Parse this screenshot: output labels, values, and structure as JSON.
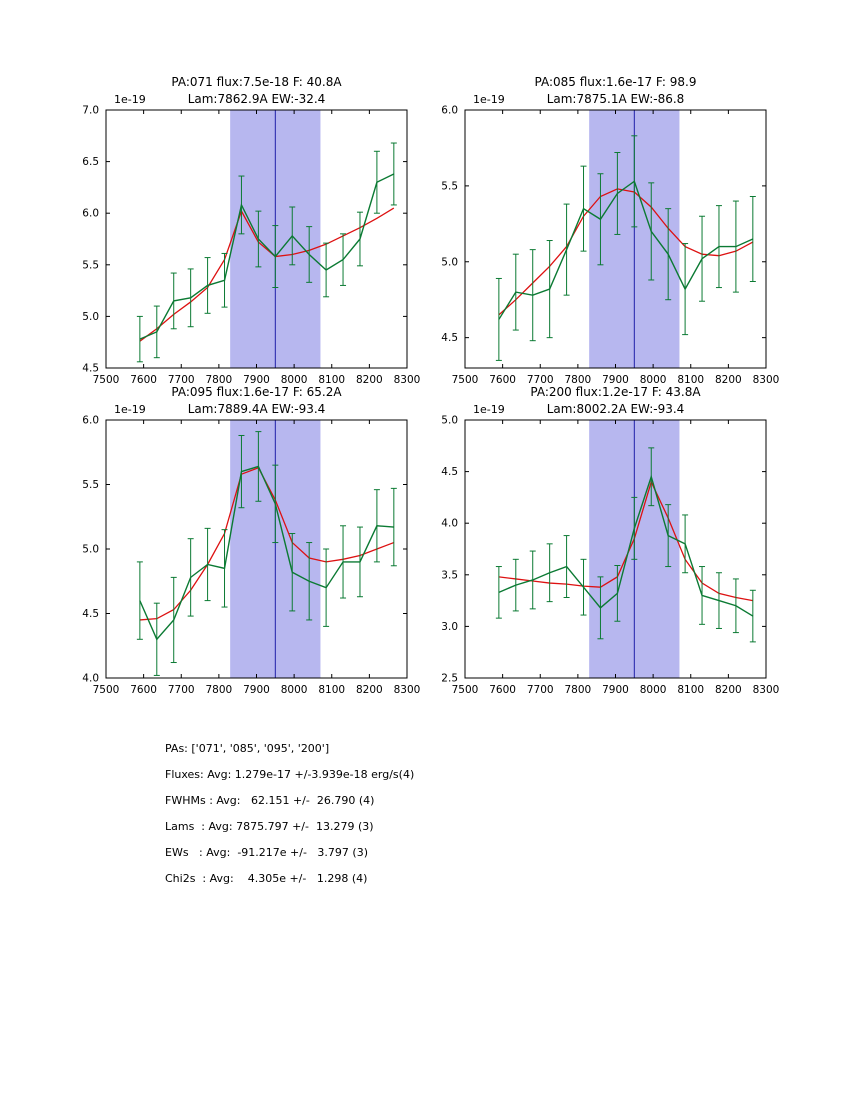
{
  "figure": {
    "background": "#ffffff"
  },
  "colors": {
    "data": "#0b7a33",
    "fit": "#dd1111",
    "vline": "#2020a8",
    "shade": "#b7b7ef",
    "frame": "#000000"
  },
  "chart_data": [
    {
      "type": "line",
      "title1": "PA:071 flux:7.5e-18 F: 40.8A",
      "title2": "Lam:7862.9A EW:-32.4",
      "offset": "1e-19",
      "xlim": [
        7500,
        8300
      ],
      "ylim": [
        4.5,
        7.0
      ],
      "xticks": [
        7500,
        7600,
        7700,
        7800,
        7900,
        8000,
        8100,
        8200,
        8300
      ],
      "yticks": [
        4.5,
        5.0,
        5.5,
        6.0,
        6.5,
        7.0
      ],
      "shade": [
        7830,
        8070
      ],
      "vline": 7950,
      "x": [
        7590,
        7635,
        7680,
        7725,
        7770,
        7815,
        7860,
        7905,
        7950,
        7995,
        8040,
        8085,
        8130,
        8175,
        8220,
        8265
      ],
      "series": [
        {
          "name": "data",
          "values": [
            4.78,
            4.85,
            5.15,
            5.18,
            5.3,
            5.35,
            6.08,
            5.75,
            5.58,
            5.78,
            5.6,
            5.45,
            5.55,
            5.75,
            6.3,
            6.38
          ],
          "err": [
            0.22,
            0.25,
            0.27,
            0.28,
            0.27,
            0.26,
            0.28,
            0.27,
            0.3,
            0.28,
            0.27,
            0.26,
            0.25,
            0.26,
            0.3,
            0.3
          ]
        },
        {
          "name": "fit",
          "values": [
            4.76,
            4.88,
            5.02,
            5.14,
            5.28,
            5.55,
            6.02,
            5.72,
            5.58,
            5.6,
            5.64,
            5.7,
            5.78,
            5.86,
            5.95,
            6.05
          ]
        }
      ]
    },
    {
      "type": "line",
      "title1": "PA:085 flux:1.6e-17 F: 98.9",
      "title2": "Lam:7875.1A EW:-86.8",
      "offset": "1e-19",
      "xlim": [
        7500,
        8300
      ],
      "ylim": [
        4.3,
        6.0
      ],
      "xticks": [
        7500,
        7600,
        7700,
        7800,
        7900,
        8000,
        8100,
        8200,
        8300
      ],
      "yticks": [
        4.5,
        5.0,
        5.5,
        6.0
      ],
      "shade": [
        7830,
        8070
      ],
      "vline": 7950,
      "x": [
        7590,
        7635,
        7680,
        7725,
        7770,
        7815,
        7860,
        7905,
        7950,
        7995,
        8040,
        8085,
        8130,
        8175,
        8220,
        8265
      ],
      "series": [
        {
          "name": "data",
          "values": [
            4.62,
            4.8,
            4.78,
            4.82,
            5.08,
            5.35,
            5.28,
            5.45,
            5.53,
            5.2,
            5.05,
            4.82,
            5.02,
            5.1,
            5.1,
            5.15
          ],
          "err": [
            0.27,
            0.25,
            0.3,
            0.32,
            0.3,
            0.28,
            0.3,
            0.27,
            0.3,
            0.32,
            0.3,
            0.3,
            0.28,
            0.27,
            0.3,
            0.28
          ]
        },
        {
          "name": "fit",
          "values": [
            4.65,
            4.75,
            4.86,
            4.97,
            5.1,
            5.3,
            5.43,
            5.48,
            5.46,
            5.36,
            5.22,
            5.1,
            5.05,
            5.04,
            5.07,
            5.13
          ]
        }
      ]
    },
    {
      "type": "line",
      "title1": "PA:095 flux:1.6e-17 F: 65.2A",
      "title2": "Lam:7889.4A EW:-93.4",
      "offset": "1e-19",
      "xlim": [
        7500,
        8300
      ],
      "ylim": [
        4.0,
        6.0
      ],
      "xticks": [
        7500,
        7600,
        7700,
        7800,
        7900,
        8000,
        8100,
        8200,
        8300
      ],
      "yticks": [
        4.0,
        4.5,
        5.0,
        5.5,
        6.0
      ],
      "shade": [
        7830,
        8070
      ],
      "vline": 7950,
      "x": [
        7590,
        7635,
        7680,
        7725,
        7770,
        7815,
        7860,
        7905,
        7950,
        7995,
        8040,
        8085,
        8130,
        8175,
        8220,
        8265
      ],
      "series": [
        {
          "name": "data",
          "values": [
            4.6,
            4.3,
            4.45,
            4.78,
            4.88,
            4.85,
            5.6,
            5.64,
            5.35,
            4.82,
            4.75,
            4.7,
            4.9,
            4.9,
            5.18,
            5.17
          ],
          "err": [
            0.3,
            0.28,
            0.33,
            0.3,
            0.28,
            0.3,
            0.28,
            0.27,
            0.3,
            0.3,
            0.3,
            0.3,
            0.28,
            0.27,
            0.28,
            0.3
          ]
        },
        {
          "name": "fit",
          "values": [
            4.45,
            4.46,
            4.53,
            4.68,
            4.88,
            5.12,
            5.58,
            5.63,
            5.38,
            5.05,
            4.93,
            4.9,
            4.92,
            4.95,
            5.0,
            5.05
          ]
        }
      ]
    },
    {
      "type": "line",
      "title1": "PA:200 flux:1.2e-17 F: 43.8A",
      "title2": "Lam:8002.2A EW:-93.4",
      "offset": "1e-19",
      "xlim": [
        7500,
        8300
      ],
      "ylim": [
        2.5,
        5.0
      ],
      "xticks": [
        7500,
        7600,
        7700,
        7800,
        7900,
        8000,
        8100,
        8200,
        8300
      ],
      "yticks": [
        2.5,
        3.0,
        3.5,
        4.0,
        4.5,
        5.0
      ],
      "shade": [
        7830,
        8070
      ],
      "vline": 7950,
      "x": [
        7590,
        7635,
        7680,
        7725,
        7770,
        7815,
        7860,
        7905,
        7950,
        7995,
        8040,
        8085,
        8130,
        8175,
        8220,
        8265
      ],
      "series": [
        {
          "name": "data",
          "values": [
            3.33,
            3.4,
            3.45,
            3.52,
            3.58,
            3.38,
            3.18,
            3.32,
            3.95,
            4.45,
            3.88,
            3.8,
            3.3,
            3.25,
            3.2,
            3.1
          ],
          "err": [
            0.25,
            0.25,
            0.28,
            0.28,
            0.3,
            0.27,
            0.3,
            0.27,
            0.3,
            0.28,
            0.3,
            0.28,
            0.28,
            0.27,
            0.26,
            0.25
          ]
        },
        {
          "name": "fit",
          "values": [
            3.48,
            3.46,
            3.44,
            3.42,
            3.41,
            3.39,
            3.38,
            3.48,
            3.85,
            4.4,
            4.05,
            3.65,
            3.42,
            3.32,
            3.28,
            3.25
          ]
        }
      ]
    }
  ],
  "summary": {
    "lines": [
      "PAs: ['071', '085', '095', '200']",
      "Fluxes: Avg: 1.279e-17 +/-3.939e-18 erg/s(4)",
      "FWHMs : Avg:   62.151 +/-  26.790 (4)",
      "Lams  : Avg: 7875.797 +/-  13.279 (3)",
      "EWs   : Avg:  -91.217e +/-   3.797 (3)",
      "Chi2s  : Avg:    4.305e +/-   1.298 (4)"
    ]
  }
}
